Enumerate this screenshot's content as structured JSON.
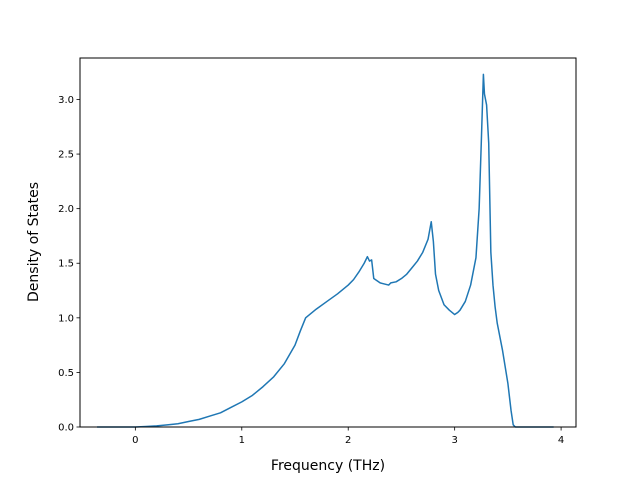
{
  "chart_data": {
    "type": "line",
    "title": "",
    "xlabel": "Frequency (THz)",
    "ylabel": "Density of States",
    "xlim": [
      -0.52,
      4.14
    ],
    "ylim": [
      0.0,
      3.38
    ],
    "grid": false,
    "legend": "none",
    "line_color": "#1f77b4",
    "xticks": [
      0,
      1,
      2,
      3,
      4
    ],
    "xtick_labels": [
      "0",
      "1",
      "2",
      "3",
      "4"
    ],
    "yticks": [
      0.0,
      0.5,
      1.0,
      1.5,
      2.0,
      2.5,
      3.0
    ],
    "ytick_labels": [
      "0.0",
      "0.5",
      "1.0",
      "1.5",
      "2.0",
      "2.5",
      "3.0"
    ],
    "series": [
      {
        "x": [
          -0.36,
          -0.2,
          0.0,
          0.1,
          0.2,
          0.3,
          0.4,
          0.5,
          0.6,
          0.7,
          0.8,
          0.9,
          1.0,
          1.1,
          1.2,
          1.3,
          1.4,
          1.5,
          1.55,
          1.6,
          1.7,
          1.8,
          1.9,
          2.0,
          2.05,
          2.1,
          2.15,
          2.18,
          2.2,
          2.22,
          2.24,
          2.3,
          2.38,
          2.4,
          2.45,
          2.5,
          2.55,
          2.6,
          2.65,
          2.7,
          2.75,
          2.78,
          2.8,
          2.82,
          2.85,
          2.9,
          2.95,
          3.0,
          3.03,
          3.05,
          3.1,
          3.15,
          3.2,
          3.23,
          3.25,
          3.27,
          3.28,
          3.3,
          3.32,
          3.34,
          3.36,
          3.38,
          3.4,
          3.45,
          3.5,
          3.53,
          3.55,
          3.57,
          3.6,
          3.7,
          3.93
        ],
        "y": [
          0.0,
          0.0,
          0.0,
          0.005,
          0.01,
          0.02,
          0.03,
          0.05,
          0.07,
          0.1,
          0.13,
          0.18,
          0.23,
          0.29,
          0.37,
          0.46,
          0.58,
          0.75,
          0.88,
          1.0,
          1.08,
          1.15,
          1.22,
          1.3,
          1.35,
          1.42,
          1.5,
          1.56,
          1.52,
          1.53,
          1.36,
          1.32,
          1.3,
          1.32,
          1.33,
          1.36,
          1.4,
          1.46,
          1.52,
          1.6,
          1.72,
          1.88,
          1.7,
          1.4,
          1.25,
          1.12,
          1.07,
          1.03,
          1.05,
          1.07,
          1.15,
          1.3,
          1.55,
          2.0,
          2.6,
          3.23,
          3.05,
          2.95,
          2.6,
          1.6,
          1.3,
          1.1,
          0.95,
          0.7,
          0.4,
          0.15,
          0.02,
          0.0,
          0.0,
          0.0,
          0.0
        ]
      }
    ]
  }
}
